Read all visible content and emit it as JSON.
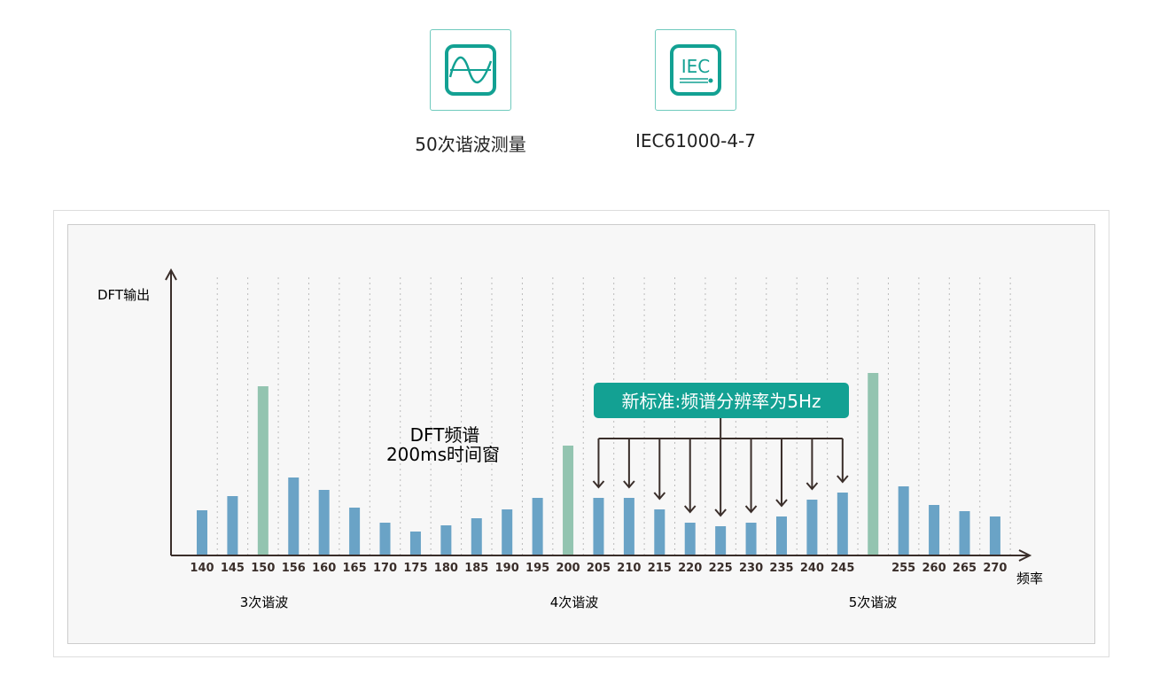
{
  "features": [
    {
      "icon": "sine-wave-icon",
      "label": "50次谐波测量"
    },
    {
      "icon": "iec-standard-icon",
      "icon_text": "IEC",
      "label": "IEC61000-4-7"
    }
  ],
  "colors": {
    "accent": "#13a193",
    "bar": "#6aa3c6",
    "harmonic_bar": "#93c4b0",
    "axis": "#3a2e2a"
  },
  "chart_data": {
    "type": "bar",
    "ylabel": "DFT输出",
    "xlabel": "频率",
    "categories": [
      "140",
      "145",
      "150",
      "156",
      "160",
      "165",
      "170",
      "175",
      "180",
      "185",
      "190",
      "195",
      "200",
      "205",
      "210",
      "215",
      "220",
      "225",
      "230",
      "235",
      "240",
      "245",
      "",
      "255",
      "260",
      "265",
      "270"
    ],
    "values": [
      50,
      66,
      190,
      87,
      73,
      53,
      36,
      26,
      33,
      41,
      51,
      64,
      123,
      64,
      64,
      51,
      36,
      32,
      36,
      43,
      62,
      70,
      205,
      77,
      56,
      49,
      43
    ],
    "highlight": [
      2,
      12,
      22
    ],
    "grid": "vertical-dotted",
    "groups": [
      "3次谐波",
      "4次谐波",
      "5次谐波"
    ],
    "annotation_center": [
      "DFT频谱",
      "200ms时间窗"
    ],
    "callout": "新标准:频谱分辨率为5Hz",
    "callout_targets": [
      "205",
      "210",
      "215",
      "220",
      "225",
      "230",
      "235",
      "240",
      "245"
    ]
  }
}
